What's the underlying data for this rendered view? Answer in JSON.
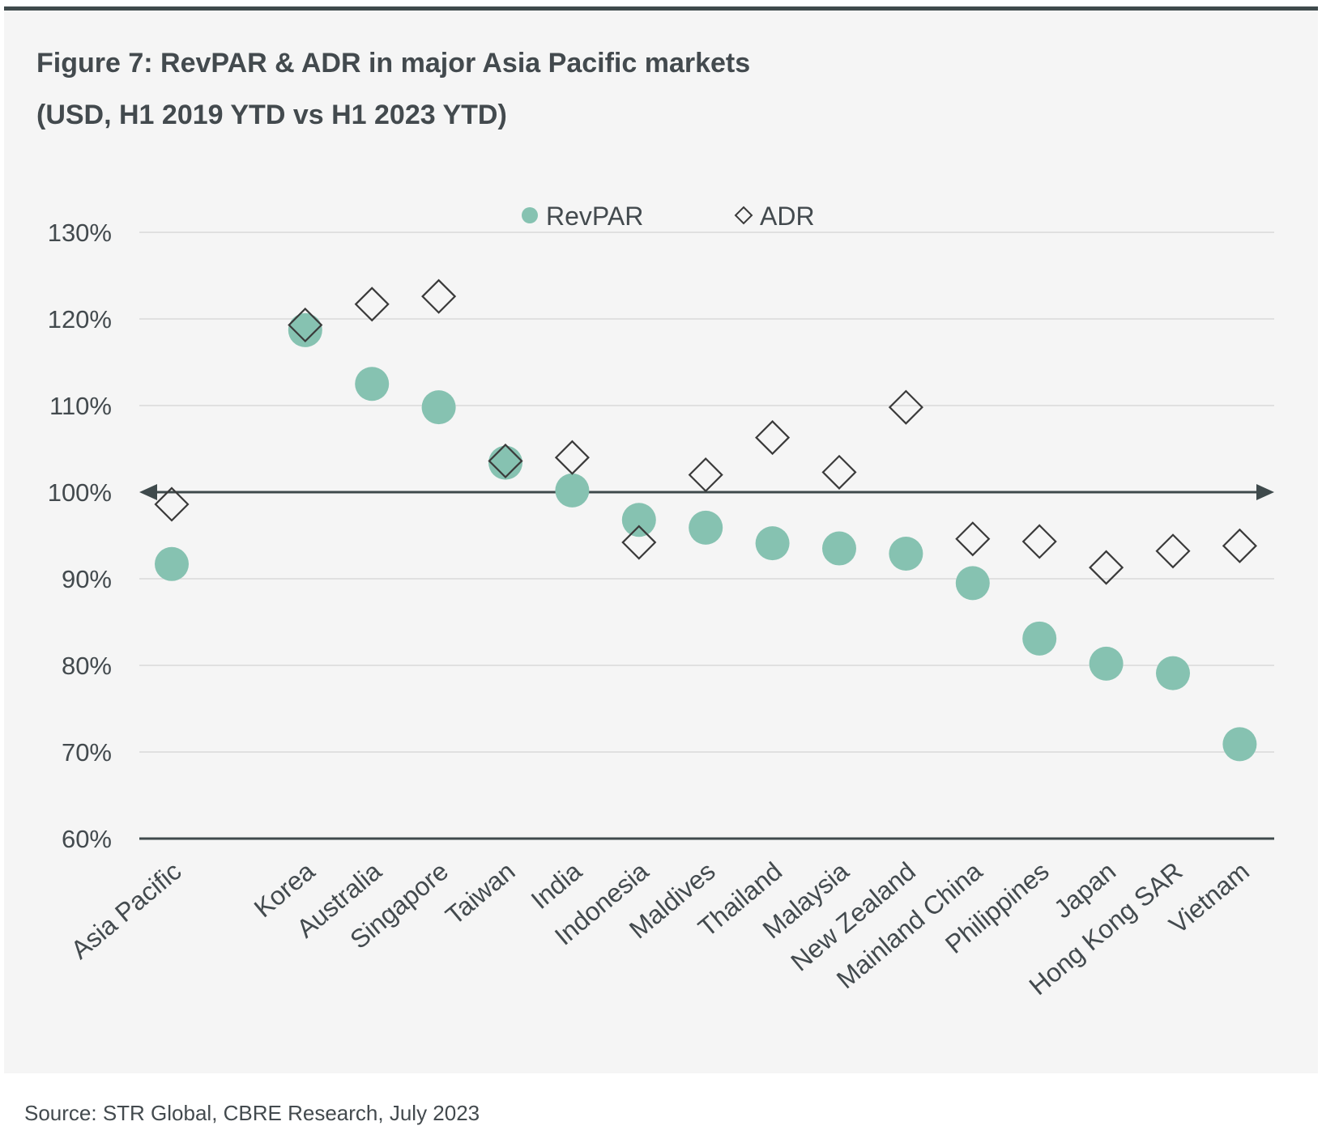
{
  "figure": {
    "title_line1": "Figure 7:  RevPAR & ADR in major Asia Pacific markets",
    "title_line2": "(USD, H1 2019 YTD vs H1 2023 YTD)",
    "source": "Source: STR Global, CBRE Research, July 2023"
  },
  "colors": {
    "revpar": "#86c2b1",
    "adr_stroke": "#3a3a3a",
    "axis": "#3f4a4c",
    "grid": "#d9d9d9",
    "panel": "#f5f5f5"
  },
  "chart_data": {
    "type": "scatter",
    "title": "Figure 7:  RevPAR & ADR in major Asia Pacific markets (USD, H1 2019 YTD vs H1 2023 YTD)",
    "categories": [
      "Asia Pacific",
      "Korea",
      "Australia",
      "Singapore",
      "Taiwan",
      "India",
      "Indonesia",
      "Maldives",
      "Thailand",
      "Malaysia",
      "New Zealand",
      "Mainland China",
      "Philippines",
      "Japan",
      "Hong Kong SAR",
      "Vietnam"
    ],
    "category_positions": [
      0,
      2,
      3,
      4,
      5,
      6,
      7,
      8,
      9,
      10,
      11,
      12,
      13,
      14,
      15,
      16
    ],
    "series": [
      {
        "name": "RevPAR",
        "marker": "circle",
        "values": [
          91.7,
          118.7,
          112.5,
          109.8,
          103.4,
          100.2,
          96.8,
          95.9,
          94.1,
          93.5,
          92.9,
          89.5,
          83.1,
          80.2,
          79.1,
          70.9
        ]
      },
      {
        "name": "ADR",
        "marker": "diamond",
        "values": [
          98.6,
          119.3,
          121.7,
          122.6,
          103.6,
          104.0,
          94.2,
          102.0,
          106.3,
          102.3,
          109.8,
          94.6,
          94.3,
          91.3,
          93.2,
          93.8
        ]
      }
    ],
    "xlabel": "",
    "ylabel": "",
    "ylim": [
      60,
      130
    ],
    "yticks": [
      "60%",
      "70%",
      "80%",
      "90%",
      "100%",
      "110%",
      "120%",
      "130%"
    ],
    "reference_line": 100,
    "legend": [
      "RevPAR",
      "ADR"
    ],
    "legend_position": "top-center",
    "grid": true
  }
}
